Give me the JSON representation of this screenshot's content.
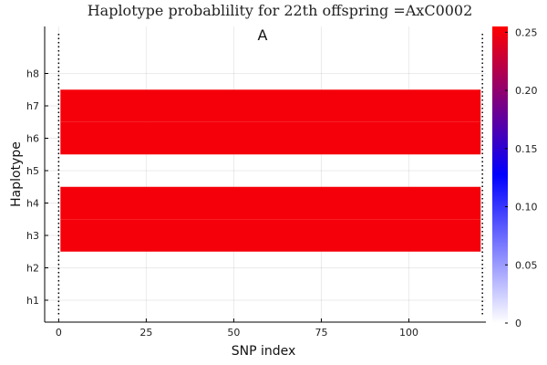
{
  "chart_data": {
    "type": "heatmap",
    "title": "Haplotype probablility for 22th offspring =AxC0002",
    "annotation": "A",
    "xlabel": "SNP index",
    "ylabel": "Haplotype",
    "xlim": [
      -4,
      122
    ],
    "x_ticks": [
      0,
      25,
      50,
      75,
      100
    ],
    "y_categories": [
      "h1",
      "h2",
      "h3",
      "h4",
      "h5",
      "h6",
      "h7",
      "h8"
    ],
    "x_range": [
      1,
      120
    ],
    "colorbar": {
      "range": [
        0,
        0.255
      ],
      "ticks": [
        0,
        0.05,
        0.1,
        0.15,
        0.2,
        0.25
      ],
      "tick_labels": [
        "0",
        "0.05",
        "0.10",
        "0.15",
        "0.20",
        "0.25"
      ],
      "colors": [
        "#ffffff",
        "#0000ff",
        "#ff0000"
      ]
    },
    "rows": [
      {
        "category": "h1",
        "value": 0.0
      },
      {
        "category": "h2",
        "value": 0.0
      },
      {
        "category": "h3",
        "value": 0.25
      },
      {
        "category": "h4",
        "value": 0.25
      },
      {
        "category": "h5",
        "value": 0.0
      },
      {
        "category": "h6",
        "value": 0.25
      },
      {
        "category": "h7",
        "value": 0.25
      },
      {
        "category": "h8",
        "value": 0.0
      }
    ],
    "vlines": [
      0,
      121
    ],
    "grid": true
  }
}
